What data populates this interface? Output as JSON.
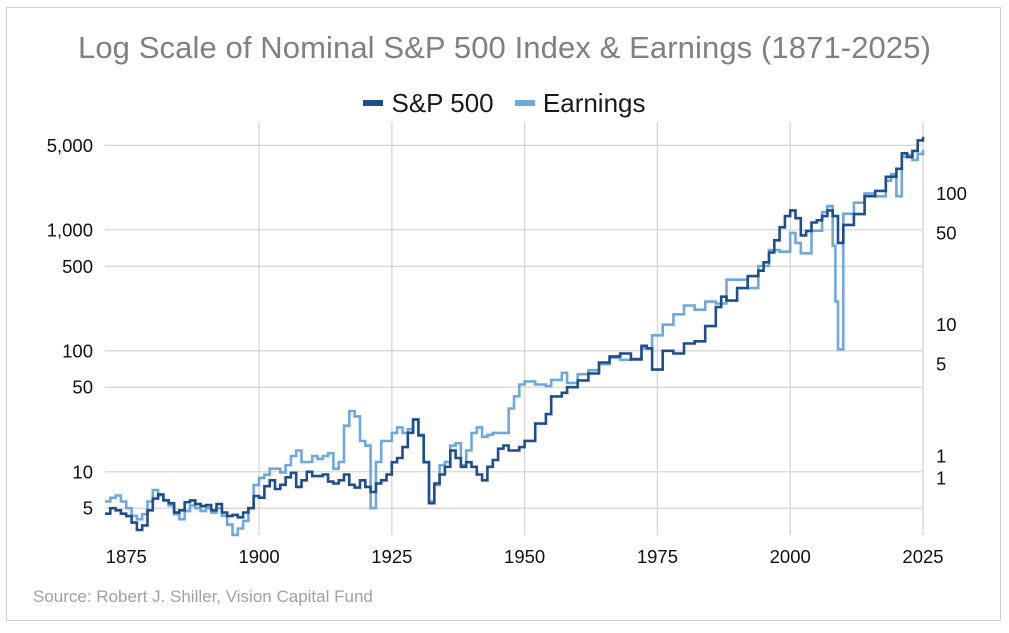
{
  "chart_data": {
    "type": "line",
    "title": "Log Scale of Nominal S&P 500 Index & Earnings (1871-2025)",
    "xlabel": "",
    "ylabel": "",
    "y_scale": "log",
    "grid": true,
    "legend_position": "top-center",
    "xlim": [
      1871,
      2025
    ],
    "ylim": [
      3,
      7800
    ],
    "y2lim": [
      0.25,
      350
    ],
    "x_ticks": [
      1875,
      1900,
      1925,
      1950,
      1975,
      2000,
      2025
    ],
    "x_tick_labels": [
      "1875",
      "1900",
      "1925",
      "1950",
      "1975",
      "2000",
      "2025"
    ],
    "y_ticks": [
      5,
      10,
      50,
      100,
      500,
      1000,
      5000
    ],
    "y_tick_labels": [
      "5",
      "10",
      "50",
      "100",
      "500",
      "1,000",
      "5,000"
    ],
    "y2_ticks": [
      {
        "value": 0.68,
        "label": "1"
      },
      {
        "value": 1.0,
        "label": "1"
      },
      {
        "value": 5,
        "label": "5"
      },
      {
        "value": 10,
        "label": "10"
      },
      {
        "value": 50,
        "label": "50"
      },
      {
        "value": 100,
        "label": "100"
      }
    ],
    "series": [
      {
        "name": "S&P 500",
        "color": "#1f4e8c",
        "axis": "left",
        "x": [
          1871,
          1872,
          1873,
          1874,
          1875,
          1876,
          1877,
          1878,
          1879,
          1880,
          1881,
          1882,
          1883,
          1884,
          1885,
          1886,
          1887,
          1888,
          1889,
          1890,
          1891,
          1892,
          1893,
          1894,
          1895,
          1896,
          1897,
          1898,
          1899,
          1900,
          1901,
          1902,
          1903,
          1904,
          1905,
          1906,
          1907,
          1908,
          1909,
          1910,
          1911,
          1912,
          1913,
          1914,
          1915,
          1916,
          1917,
          1918,
          1919,
          1920,
          1921,
          1922,
          1923,
          1924,
          1925,
          1926,
          1927,
          1928,
          1929,
          1930,
          1931,
          1932,
          1933,
          1934,
          1935,
          1936,
          1937,
          1938,
          1939,
          1940,
          1941,
          1942,
          1943,
          1944,
          1945,
          1946,
          1947,
          1948,
          1949,
          1950,
          1952,
          1954,
          1955,
          1957,
          1958,
          1960,
          1962,
          1964,
          1966,
          1968,
          1970,
          1972,
          1973,
          1974,
          1976,
          1978,
          1980,
          1982,
          1984,
          1986,
          1987,
          1988,
          1990,
          1992,
          1994,
          1995,
          1996,
          1997,
          1998,
          1999,
          2000,
          2001,
          2002,
          2003,
          2004,
          2005,
          2006,
          2007,
          2008,
          2009,
          2010,
          2012,
          2014,
          2016,
          2018,
          2020,
          2021,
          2022,
          2023,
          2024,
          2025
        ],
        "values": [
          4.5,
          5.0,
          4.8,
          4.5,
          4.3,
          3.8,
          3.3,
          3.6,
          4.8,
          6.0,
          6.5,
          5.8,
          5.5,
          4.6,
          4.8,
          5.6,
          5.8,
          5.4,
          5.2,
          5.3,
          4.8,
          5.4,
          4.6,
          4.3,
          4.4,
          4.2,
          4.6,
          5.0,
          6.3,
          6.1,
          7.6,
          8.5,
          7.2,
          7.8,
          9.0,
          9.8,
          7.5,
          8.5,
          10.0,
          9.2,
          9.2,
          9.5,
          8.3,
          8.0,
          8.5,
          9.5,
          7.8,
          7.4,
          8.5,
          7.5,
          6.8,
          8.0,
          8.5,
          9.5,
          12.0,
          13.0,
          16.0,
          21.0,
          27.0,
          20.0,
          12.0,
          5.5,
          8.0,
          9.5,
          11.0,
          15.0,
          13.0,
          11.0,
          12.0,
          11.0,
          9.5,
          8.5,
          11.0,
          12.5,
          15.5,
          16.5,
          15.0,
          15.0,
          16.0,
          18.0,
          25.0,
          30.0,
          42.0,
          45.0,
          50.0,
          57.0,
          65.0,
          80.0,
          90.0,
          95.0,
          85.0,
          110.0,
          105.0,
          70.0,
          100.0,
          95.0,
          115.0,
          120.0,
          160.0,
          230.0,
          280.0,
          260.0,
          330.0,
          415.0,
          460.0,
          540.0,
          650.0,
          820.0,
          1050.0,
          1300.0,
          1450.0,
          1250.0,
          900.0,
          980.0,
          1150.0,
          1200.0,
          1300.0,
          1450.0,
          1300.0,
          780.0,
          1100.0,
          1350.0,
          1900.0,
          2100.0,
          2750.0,
          3200.0,
          4300.0,
          4000.0,
          4500.0,
          5500.0,
          5900.0
        ]
      },
      {
        "name": "Earnings",
        "color": "#6fa8dc",
        "axis": "right",
        "x": [
          1871,
          1872,
          1873,
          1874,
          1875,
          1876,
          1877,
          1878,
          1879,
          1880,
          1881,
          1882,
          1883,
          1884,
          1885,
          1886,
          1887,
          1888,
          1889,
          1890,
          1891,
          1892,
          1893,
          1894,
          1895,
          1896,
          1897,
          1898,
          1899,
          1900,
          1901,
          1902,
          1903,
          1904,
          1905,
          1906,
          1907,
          1908,
          1909,
          1910,
          1911,
          1912,
          1913,
          1914,
          1915,
          1916,
          1917,
          1918,
          1919,
          1920,
          1921,
          1922,
          1923,
          1924,
          1925,
          1926,
          1927,
          1928,
          1929,
          1930,
          1931,
          1932,
          1933,
          1934,
          1935,
          1936,
          1937,
          1938,
          1939,
          1940,
          1941,
          1942,
          1943,
          1944,
          1945,
          1946,
          1947,
          1948,
          1949,
          1950,
          1952,
          1954,
          1955,
          1957,
          1958,
          1960,
          1962,
          1964,
          1966,
          1968,
          1970,
          1972,
          1974,
          1976,
          1978,
          1980,
          1982,
          1984,
          1986,
          1988,
          1990,
          1992,
          1994,
          1996,
          1998,
          2000,
          2001,
          2002,
          2004,
          2006,
          2007,
          2008,
          2008.5,
          2009,
          2010,
          2012,
          2014,
          2016,
          2018,
          2019,
          2020,
          2021,
          2022,
          2023,
          2024,
          2025
        ],
        "values": [
          0.45,
          0.48,
          0.5,
          0.45,
          0.4,
          0.35,
          0.33,
          0.36,
          0.45,
          0.55,
          0.5,
          0.46,
          0.42,
          0.36,
          0.33,
          0.38,
          0.42,
          0.4,
          0.38,
          0.4,
          0.37,
          0.4,
          0.35,
          0.3,
          0.25,
          0.28,
          0.32,
          0.4,
          0.6,
          0.68,
          0.72,
          0.8,
          0.8,
          0.75,
          0.85,
          1.0,
          1.1,
          0.9,
          0.9,
          1.0,
          0.95,
          1.0,
          1.05,
          0.8,
          0.9,
          1.7,
          2.2,
          2.0,
          1.3,
          1.2,
          0.4,
          0.9,
          1.3,
          1.3,
          1.5,
          1.65,
          1.5,
          1.6,
          1.9,
          1.45,
          0.9,
          0.45,
          0.6,
          0.85,
          0.9,
          1.2,
          1.25,
          0.85,
          1.1,
          1.5,
          1.65,
          1.4,
          1.45,
          1.5,
          1.5,
          1.5,
          2.3,
          2.85,
          3.5,
          3.7,
          3.5,
          3.4,
          3.8,
          4.3,
          3.6,
          4.2,
          4.5,
          5.0,
          5.6,
          5.4,
          5.5,
          6.6,
          8.3,
          10.0,
          12.0,
          14.0,
          13.0,
          15.0,
          14.5,
          22.0,
          22.0,
          19.0,
          28.0,
          37.0,
          36.0,
          50.0,
          42.0,
          35.0,
          52.0,
          72.0,
          80.0,
          40.0,
          15.0,
          6.5,
          70.0,
          85.0,
          100.0,
          95.0,
          125.0,
          140.0,
          95.0,
          190.0,
          195.0,
          180.0,
          200.0,
          215.0
        ]
      }
    ]
  },
  "legend": {
    "items": [
      {
        "label": "S&P 500",
        "color": "#1f4e8c"
      },
      {
        "label": "Earnings",
        "color": "#6fa8dc"
      }
    ]
  },
  "source": "Source: Robert J. Shiller, Vision Capital Fund"
}
